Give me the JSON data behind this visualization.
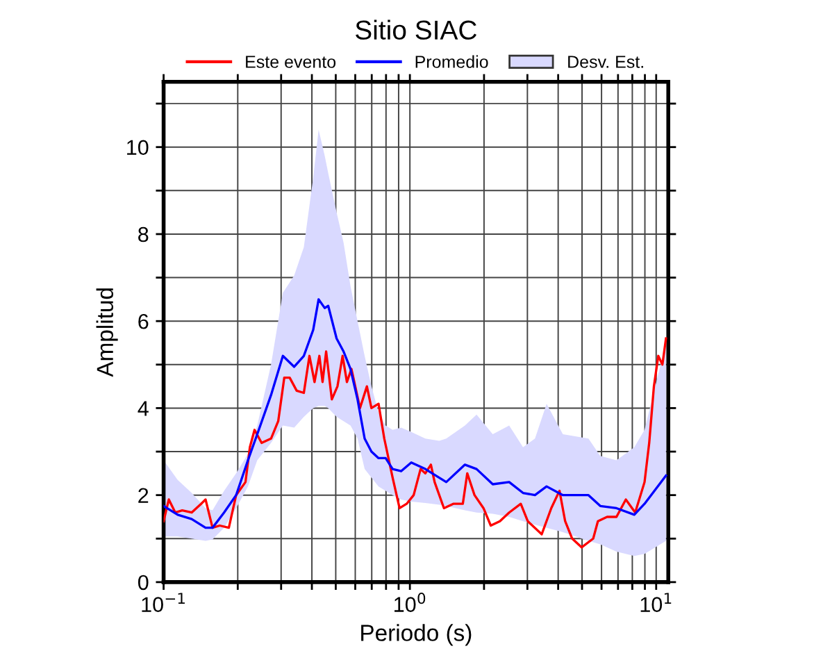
{
  "chart_data": {
    "type": "line",
    "title": "Sitio SIAC",
    "xlabel": "Periodo (s)",
    "ylabel": "Amplitud",
    "log": "x",
    "xlim": [
      0.1,
      11.2
    ],
    "ylim": [
      0,
      11.5
    ],
    "xticks": [
      {
        "value": 0.1,
        "label": "10$^{−1}$"
      },
      {
        "value": 0.2,
        "label": null
      },
      {
        "value": 0.3,
        "label": null
      },
      {
        "value": 0.4,
        "label": null
      },
      {
        "value": 0.5,
        "label": null
      },
      {
        "value": 0.6,
        "label": null
      },
      {
        "value": 0.7,
        "label": null
      },
      {
        "value": 0.8,
        "label": null
      },
      {
        "value": 0.9,
        "label": null
      },
      {
        "value": 1,
        "label": "10$^{0}$"
      },
      {
        "value": 2,
        "label": null
      },
      {
        "value": 3,
        "label": null
      },
      {
        "value": 4,
        "label": null
      },
      {
        "value": 5,
        "label": null
      },
      {
        "value": 6,
        "label": null
      },
      {
        "value": 7,
        "label": null
      },
      {
        "value": 8,
        "label": null
      },
      {
        "value": 9,
        "label": null
      },
      {
        "value": 10,
        "label": "10$^{1}$"
      }
    ],
    "yticks": [
      0,
      {
        "value": 1,
        "label": null
      },
      2,
      {
        "value": 3,
        "label": null
      },
      4,
      {
        "value": 5,
        "label": null
      },
      6,
      {
        "value": 7,
        "label": null
      },
      8,
      {
        "value": 9,
        "label": null
      },
      10,
      {
        "value": 11,
        "label": null
      }
    ],
    "grid": true,
    "legend": "top",
    "annotations": [
      "Desv. Est."
    ],
    "series": [
      {
        "name": "Este evento",
        "color": "#ff0000",
        "x": [
          0.1,
          0.105,
          0.1115,
          0.119,
          0.13,
          0.142,
          0.148,
          0.158,
          0.169,
          0.184,
          0.197,
          0.215,
          0.224,
          0.234,
          0.25,
          0.273,
          0.292,
          0.309,
          0.325,
          0.347,
          0.371,
          0.391,
          0.41,
          0.429,
          0.442,
          0.457,
          0.482,
          0.508,
          0.533,
          0.555,
          0.579,
          0.627,
          0.669,
          0.698,
          0.746,
          0.787,
          0.851,
          0.908,
          0.97,
          1.036,
          1.105,
          1.155,
          1.217,
          1.26,
          1.375,
          1.5,
          1.64,
          1.71,
          1.83,
          1.99,
          2.13,
          2.32,
          2.53,
          2.82,
          3.01,
          3.43,
          3.75,
          4.05,
          4.27,
          4.56,
          4.98,
          5.55,
          5.8,
          6.32,
          6.9,
          7.53,
          8.22,
          8.97,
          9.37,
          9.79,
          10.2,
          10.6,
          10.96
        ],
        "values": [
          1.4,
          1.9,
          1.6,
          1.65,
          1.6,
          1.8,
          1.9,
          1.25,
          1.3,
          1.25,
          2.0,
          2.3,
          3.1,
          3.5,
          3.2,
          3.3,
          3.7,
          4.7,
          4.7,
          4.4,
          4.35,
          5.2,
          4.6,
          5.2,
          4.6,
          5.3,
          4.2,
          4.5,
          5.2,
          4.6,
          4.9,
          4.0,
          4.5,
          4.0,
          4.1,
          3.3,
          2.4,
          1.7,
          1.8,
          2.0,
          2.6,
          2.5,
          2.7,
          2.3,
          1.7,
          1.8,
          1.8,
          2.5,
          2.0,
          1.7,
          1.3,
          1.4,
          1.6,
          1.8,
          1.4,
          1.1,
          1.7,
          2.1,
          1.4,
          1.0,
          0.8,
          1.0,
          1.4,
          1.5,
          1.5,
          1.9,
          1.6,
          2.3,
          3.2,
          4.5,
          5.2,
          5.0,
          5.6
        ]
      },
      {
        "name": "Promedio",
        "color": "#0000ff",
        "x": [
          0.1,
          0.114,
          0.13,
          0.148,
          0.158,
          0.176,
          0.197,
          0.22,
          0.24,
          0.273,
          0.305,
          0.339,
          0.371,
          0.405,
          0.426,
          0.451,
          0.466,
          0.504,
          0.538,
          0.574,
          0.613,
          0.655,
          0.698,
          0.746,
          0.797,
          0.851,
          0.921,
          1.013,
          1.155,
          1.316,
          1.405,
          1.673,
          1.865,
          2.17,
          2.53,
          2.88,
          3.22,
          3.59,
          4.18,
          5.31,
          5.93,
          6.9,
          8.15,
          8.97,
          10.96
        ],
        "values": [
          1.75,
          1.55,
          1.45,
          1.25,
          1.25,
          1.6,
          2.0,
          2.8,
          3.4,
          4.3,
          5.2,
          4.95,
          5.2,
          5.8,
          6.5,
          6.3,
          6.35,
          5.6,
          5.3,
          4.9,
          4.2,
          3.3,
          3.0,
          2.85,
          2.85,
          2.6,
          2.55,
          2.75,
          2.6,
          2.4,
          2.3,
          2.7,
          2.6,
          2.25,
          2.3,
          2.05,
          2.0,
          2.2,
          2.0,
          2.0,
          1.75,
          1.7,
          1.55,
          1.8,
          2.45
        ],
        "upper": [
          2.8,
          2.35,
          2.05,
          1.7,
          1.65,
          2.1,
          2.5,
          2.95,
          3.6,
          5.0,
          6.65,
          7.05,
          7.7,
          9.3,
          10.4,
          9.8,
          9.4,
          8.5,
          7.8,
          6.8,
          6.0,
          5.2,
          4.5,
          3.9,
          3.6,
          3.5,
          3.55,
          3.45,
          3.3,
          3.25,
          3.3,
          3.6,
          3.85,
          3.4,
          3.6,
          3.1,
          3.3,
          4.1,
          3.4,
          3.3,
          2.9,
          2.8,
          3.1,
          3.5,
          5.5
        ],
        "lower": [
          1.05,
          1.05,
          1.0,
          0.95,
          0.98,
          1.25,
          1.7,
          2.2,
          2.8,
          3.2,
          3.6,
          3.55,
          3.8,
          4.0,
          4.05,
          4.05,
          4.0,
          3.8,
          3.7,
          3.6,
          3.3,
          2.6,
          2.4,
          2.2,
          2.1,
          2.0,
          1.9,
          1.85,
          1.82,
          1.78,
          1.75,
          1.65,
          1.6,
          1.57,
          1.5,
          1.4,
          1.32,
          1.25,
          1.15,
          0.95,
          0.87,
          0.7,
          0.6,
          0.65,
          0.95
        ]
      }
    ]
  }
}
